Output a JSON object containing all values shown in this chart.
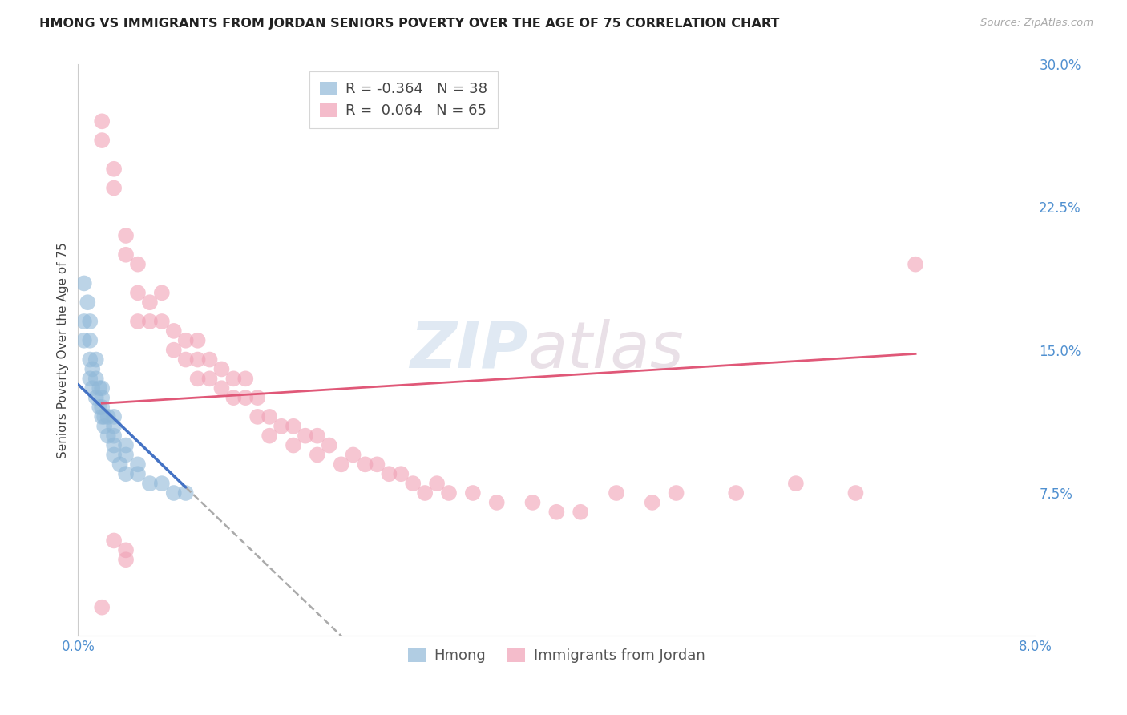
{
  "title": "HMONG VS IMMIGRANTS FROM JORDAN SENIORS POVERTY OVER THE AGE OF 75 CORRELATION CHART",
  "source": "Source: ZipAtlas.com",
  "ylabel": "Seniors Poverty Over the Age of 75",
  "y_ticks": [
    0.0,
    0.075,
    0.15,
    0.225,
    0.3
  ],
  "y_tick_labels_right": [
    "",
    "7.5%",
    "15.0%",
    "22.5%",
    "30.0%"
  ],
  "xlim": [
    0.0,
    0.08
  ],
  "ylim": [
    0.0,
    0.3
  ],
  "legend_entries": [
    {
      "label": "R = -0.364   N = 38"
    },
    {
      "label": "R =  0.064   N = 65"
    }
  ],
  "legend_series": [
    "Hmong",
    "Immigrants from Jordan"
  ],
  "hmong_color": "#90b8d8",
  "jordan_color": "#f0a0b5",
  "line_hmong_color": "#4472c4",
  "line_jordan_color": "#e05878",
  "watermark_zip": "ZIP",
  "watermark_atlas": "atlas",
  "background_color": "#ffffff",
  "grid_color": "#d8d8d8",
  "hmong_x": [
    0.0005,
    0.0005,
    0.0008,
    0.001,
    0.001,
    0.001,
    0.001,
    0.0012,
    0.0012,
    0.0015,
    0.0015,
    0.0015,
    0.0018,
    0.0018,
    0.002,
    0.002,
    0.002,
    0.002,
    0.0022,
    0.0022,
    0.0025,
    0.0025,
    0.003,
    0.003,
    0.003,
    0.003,
    0.003,
    0.0035,
    0.004,
    0.004,
    0.004,
    0.005,
    0.005,
    0.006,
    0.007,
    0.008,
    0.009,
    0.0005
  ],
  "hmong_y": [
    0.185,
    0.165,
    0.175,
    0.165,
    0.155,
    0.145,
    0.135,
    0.14,
    0.13,
    0.145,
    0.135,
    0.125,
    0.13,
    0.12,
    0.13,
    0.125,
    0.12,
    0.115,
    0.115,
    0.11,
    0.115,
    0.105,
    0.115,
    0.11,
    0.105,
    0.1,
    0.095,
    0.09,
    0.1,
    0.095,
    0.085,
    0.09,
    0.085,
    0.08,
    0.08,
    0.075,
    0.075,
    0.155
  ],
  "jordan_x": [
    0.002,
    0.002,
    0.003,
    0.003,
    0.004,
    0.004,
    0.005,
    0.005,
    0.005,
    0.006,
    0.006,
    0.007,
    0.007,
    0.008,
    0.008,
    0.009,
    0.009,
    0.01,
    0.01,
    0.01,
    0.011,
    0.011,
    0.012,
    0.012,
    0.013,
    0.013,
    0.014,
    0.014,
    0.015,
    0.015,
    0.016,
    0.016,
    0.017,
    0.018,
    0.018,
    0.019,
    0.02,
    0.02,
    0.021,
    0.022,
    0.023,
    0.024,
    0.025,
    0.026,
    0.027,
    0.028,
    0.029,
    0.03,
    0.031,
    0.033,
    0.035,
    0.038,
    0.04,
    0.042,
    0.045,
    0.048,
    0.05,
    0.055,
    0.06,
    0.065,
    0.07,
    0.003,
    0.004,
    0.004,
    0.002
  ],
  "jordan_y": [
    0.27,
    0.26,
    0.245,
    0.235,
    0.21,
    0.2,
    0.195,
    0.18,
    0.165,
    0.175,
    0.165,
    0.18,
    0.165,
    0.16,
    0.15,
    0.155,
    0.145,
    0.155,
    0.145,
    0.135,
    0.145,
    0.135,
    0.14,
    0.13,
    0.135,
    0.125,
    0.135,
    0.125,
    0.125,
    0.115,
    0.115,
    0.105,
    0.11,
    0.11,
    0.1,
    0.105,
    0.105,
    0.095,
    0.1,
    0.09,
    0.095,
    0.09,
    0.09,
    0.085,
    0.085,
    0.08,
    0.075,
    0.08,
    0.075,
    0.075,
    0.07,
    0.07,
    0.065,
    0.065,
    0.075,
    0.07,
    0.075,
    0.075,
    0.08,
    0.075,
    0.195,
    0.05,
    0.045,
    0.04,
    0.015
  ]
}
